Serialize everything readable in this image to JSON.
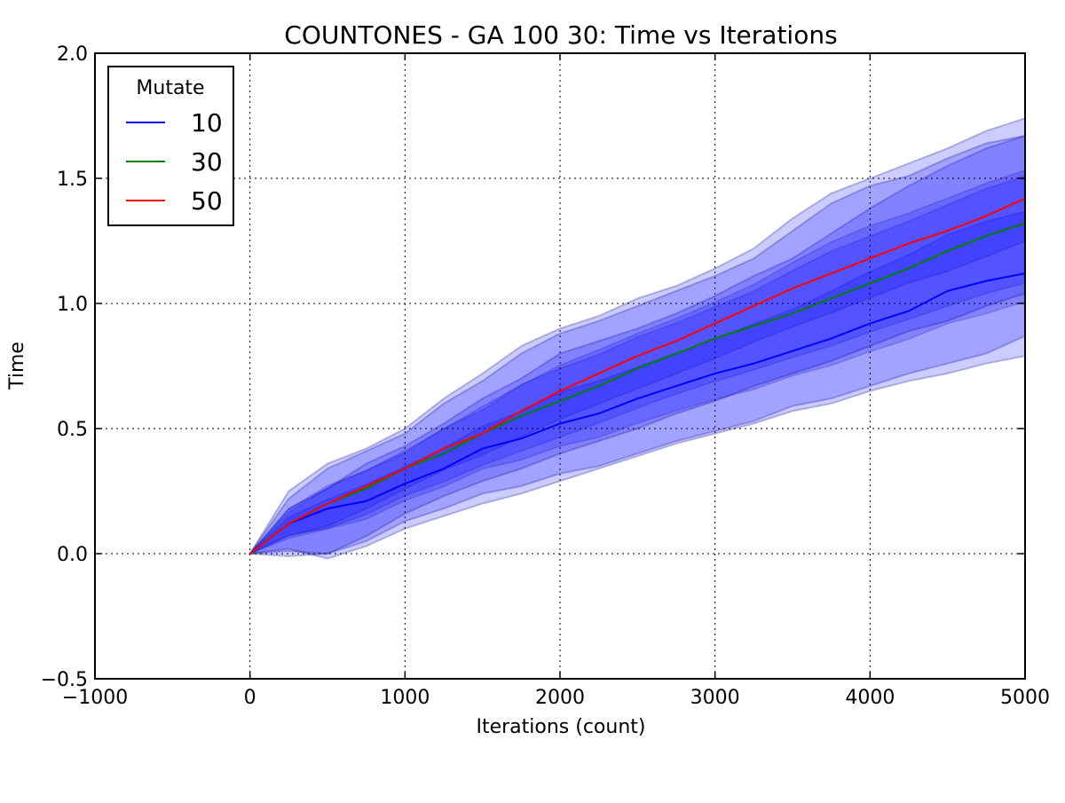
{
  "chart_data": {
    "type": "line",
    "title": "COUNTONES - GA 100 30: Time vs Iterations",
    "xlabel": "Iterations (count)",
    "ylabel": "Time",
    "xlim": [
      -1000,
      5000
    ],
    "ylim": [
      -0.5,
      2.0
    ],
    "xticks": [
      -1000,
      0,
      1000,
      2000,
      3000,
      4000,
      5000
    ],
    "yticks": [
      -0.5,
      0.0,
      0.5,
      1.0,
      1.5,
      2.0
    ],
    "xtick_labels": [
      "−1000",
      "0",
      "1000",
      "2000",
      "3000",
      "4000",
      "5000"
    ],
    "ytick_labels": [
      "−0.5",
      "0.0",
      "0.5",
      "1.0",
      "1.5",
      "2.0"
    ],
    "grid": true,
    "legend": {
      "title": "Mutate",
      "placement": "top-left"
    },
    "x": [
      0,
      250,
      500,
      750,
      1000,
      1250,
      1500,
      1750,
      2000,
      2250,
      2500,
      2750,
      3000,
      3250,
      3500,
      3750,
      4000,
      4250,
      4500,
      4750,
      5000
    ],
    "series": [
      {
        "name": "10",
        "color": "#0000ff",
        "values": [
          0.0,
          0.12,
          0.18,
          0.21,
          0.28,
          0.34,
          0.42,
          0.46,
          0.52,
          0.56,
          0.62,
          0.67,
          0.72,
          0.76,
          0.81,
          0.86,
          0.92,
          0.97,
          1.05,
          1.09,
          1.12
        ],
        "band_outer": {
          "upper": [
            0.0,
            0.18,
            0.26,
            0.36,
            0.43,
            0.52,
            0.62,
            0.7,
            0.8,
            0.85,
            0.9,
            0.96,
            1.03,
            1.11,
            1.18,
            1.28,
            1.38,
            1.47,
            1.55,
            1.62,
            1.67
          ],
          "lower": [
            0.0,
            -0.01,
            0.0,
            0.05,
            0.13,
            0.18,
            0.24,
            0.27,
            0.32,
            0.35,
            0.4,
            0.45,
            0.49,
            0.53,
            0.59,
            0.62,
            0.67,
            0.72,
            0.76,
            0.8,
            0.87
          ]
        }
      },
      {
        "name": "30",
        "color": "#008000",
        "values": [
          0.0,
          0.12,
          0.2,
          0.26,
          0.34,
          0.4,
          0.48,
          0.55,
          0.61,
          0.67,
          0.74,
          0.8,
          0.86,
          0.91,
          0.96,
          1.02,
          1.08,
          1.14,
          1.21,
          1.27,
          1.32
        ],
        "band_outer": {
          "upper": [
            0.0,
            0.25,
            0.36,
            0.42,
            0.5,
            0.62,
            0.72,
            0.83,
            0.9,
            0.95,
            1.02,
            1.07,
            1.14,
            1.22,
            1.34,
            1.44,
            1.5,
            1.56,
            1.62,
            1.69,
            1.74
          ],
          "lower": [
            0.0,
            0.02,
            -0.02,
            0.03,
            0.1,
            0.15,
            0.2,
            0.24,
            0.29,
            0.34,
            0.39,
            0.44,
            0.48,
            0.52,
            0.57,
            0.6,
            0.65,
            0.69,
            0.72,
            0.76,
            0.79
          ]
        }
      },
      {
        "name": "50",
        "color": "#ff0000",
        "values": [
          0.0,
          0.12,
          0.2,
          0.27,
          0.34,
          0.42,
          0.48,
          0.57,
          0.65,
          0.72,
          0.79,
          0.85,
          0.92,
          0.99,
          1.06,
          1.12,
          1.18,
          1.24,
          1.29,
          1.35,
          1.42
        ],
        "band_outer": {
          "upper": [
            0.0,
            0.22,
            0.34,
            0.41,
            0.48,
            0.6,
            0.69,
            0.8,
            0.88,
            0.93,
            0.99,
            1.05,
            1.11,
            1.18,
            1.29,
            1.4,
            1.47,
            1.51,
            1.58,
            1.64,
            1.67
          ],
          "lower": [
            0.0,
            0.01,
            0.0,
            0.07,
            0.16,
            0.23,
            0.29,
            0.34,
            0.4,
            0.45,
            0.5,
            0.56,
            0.61,
            0.67,
            0.72,
            0.77,
            0.83,
            0.89,
            0.93,
            0.99,
            1.04
          ]
        }
      }
    ]
  }
}
